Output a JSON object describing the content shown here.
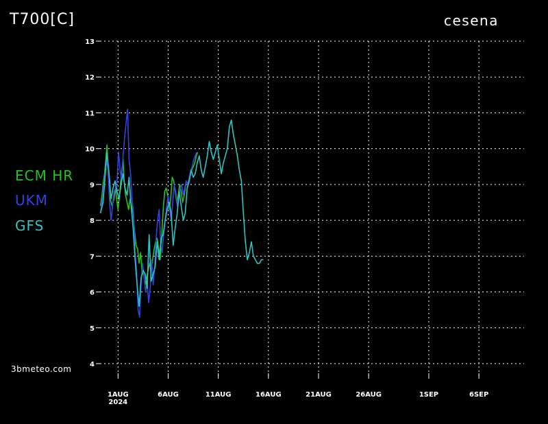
{
  "header": {
    "title": "T700[C]",
    "location": "cesena"
  },
  "credit": "3bmeteo.com",
  "legend": [
    {
      "name": "ECM HR",
      "color": "#22c322"
    },
    {
      "name": "UKM",
      "color": "#3344dd"
    },
    {
      "name": "GFS",
      "color": "#2fc4c4"
    }
  ],
  "chart_data": {
    "type": "line",
    "xlabel": "",
    "ylabel": "",
    "ylim": [
      4,
      13
    ],
    "xlim": [
      -1.8,
      40.5
    ],
    "grid": true,
    "yticks": [
      4,
      5,
      6,
      7,
      8,
      9,
      10,
      11,
      12,
      13
    ],
    "xticks": [
      {
        "x": 0,
        "label": "1AUG",
        "sublabel": "2024"
      },
      {
        "x": 5,
        "label": "6AUG"
      },
      {
        "x": 10,
        "label": "11AUG"
      },
      {
        "x": 15,
        "label": "16AUG"
      },
      {
        "x": 20,
        "label": "21AUG"
      },
      {
        "x": 25,
        "label": "26AUG"
      },
      {
        "x": 31,
        "label": "1SEP"
      },
      {
        "x": 36,
        "label": "6SEP"
      }
    ],
    "series": [
      {
        "name": "ECM HR",
        "color": "#22c322",
        "x": [
          -1.75,
          -1.6,
          -1.5,
          -1.35,
          -1.25,
          -1.1,
          -0.95,
          -0.8,
          -0.6,
          -0.4,
          -0.25,
          -0.1,
          0,
          0.15,
          0.3,
          0.5,
          0.6,
          0.75,
          0.9,
          1.05,
          1.2,
          1.35,
          1.5,
          1.65,
          1.8,
          1.95,
          2.1,
          2.25,
          2.4,
          2.55,
          2.7,
          2.85,
          3.0,
          3.15,
          3.3,
          3.45,
          3.6,
          3.75,
          3.9,
          4.05,
          4.2,
          4.35,
          4.5,
          4.65,
          4.8,
          4.95,
          5.1,
          5.25,
          5.4,
          5.55,
          5.7,
          5.85,
          6.0,
          6.15,
          6.3,
          6.45,
          6.6,
          6.75,
          6.9,
          7.05,
          7.2,
          7.35,
          7.5,
          7.65,
          7.8,
          7.95
        ],
        "y": [
          8.4,
          8.7,
          9.0,
          9.3,
          9.6,
          10.1,
          9.2,
          8.6,
          8.4,
          8.6,
          8.9,
          8.5,
          8.3,
          8.7,
          9.2,
          9.7,
          9.1,
          8.7,
          8.5,
          8.3,
          8.6,
          8.4,
          8.2,
          7.7,
          7.3,
          7.2,
          6.8,
          7.1,
          6.5,
          6.5,
          6.2,
          6.4,
          6.6,
          6.8,
          6.6,
          6.9,
          7.2,
          7.4,
          7.5,
          7.2,
          6.9,
          7.5,
          8.3,
          8.8,
          8.9,
          8.7,
          8.3,
          8.6,
          9.2,
          9.1,
          8.8,
          8.5,
          8.7,
          9.0,
          8.8,
          8.5,
          8.7,
          9.0,
          9.0,
          9.1,
          9.3,
          9.4,
          9.5,
          9.6,
          9.8,
          9.9
        ]
      },
      {
        "name": "UKM",
        "color": "#3344dd",
        "x": [
          -1.75,
          -1.6,
          -1.45,
          -1.3,
          -1.15,
          -1.0,
          -0.85,
          -0.7,
          -0.55,
          -0.4,
          -0.25,
          -0.1,
          0.05,
          0.2,
          0.35,
          0.5,
          0.65,
          0.8,
          0.95,
          1.1,
          1.25,
          1.4,
          1.55,
          1.7,
          1.85,
          2.0,
          2.15,
          2.3,
          2.45,
          2.6,
          2.75,
          2.9,
          3.05,
          3.2,
          3.35,
          3.5,
          3.65,
          3.8,
          3.95,
          4.1,
          4.25,
          4.4,
          4.55,
          4.7,
          4.85,
          5.0,
          5.15,
          5.3,
          5.45,
          5.6,
          5.75,
          5.9,
          6.05,
          6.2,
          6.35,
          6.5,
          6.65,
          6.8,
          6.95,
          7.1,
          7.25,
          7.4,
          7.55,
          7.7,
          7.85
        ],
        "y": [
          8.2,
          8.5,
          8.9,
          9.3,
          9.7,
          9.4,
          8.5,
          8.0,
          8.4,
          8.8,
          8.9,
          9.1,
          9.9,
          9.4,
          9.1,
          9.8,
          10.3,
          10.7,
          11.1,
          9.7,
          9.3,
          8.6,
          8.2,
          7.1,
          6.6,
          5.5,
          5.3,
          6.2,
          6.8,
          6.4,
          6.0,
          6.3,
          5.7,
          6.1,
          6.9,
          6.2,
          6.7,
          7.5,
          8.0,
          8.3,
          7.4,
          7.1,
          7.6,
          8.0,
          8.4,
          8.7,
          8.3,
          8.0,
          8.5,
          9.0,
          8.8,
          8.4,
          8.6,
          8.9,
          9.0,
          8.7,
          8.9,
          9.1,
          9.0,
          9.2,
          9.4,
          9.5,
          9.7,
          9.8,
          9.9
        ]
      },
      {
        "name": "GFS",
        "color": "#2fc4c4",
        "x": [
          -1.75,
          -1.5,
          -1.3,
          -1.1,
          -0.9,
          -0.7,
          -0.5,
          -0.3,
          -0.1,
          0.1,
          0.3,
          0.5,
          0.7,
          0.9,
          1.1,
          1.3,
          1.5,
          1.7,
          1.9,
          2.1,
          2.3,
          2.5,
          2.7,
          2.9,
          3.1,
          3.3,
          3.5,
          3.7,
          3.9,
          4.1,
          4.3,
          4.5,
          4.7,
          4.9,
          5.1,
          5.3,
          5.5,
          5.7,
          5.9,
          6.1,
          6.3,
          6.5,
          6.7,
          6.9,
          7.1,
          7.3,
          7.5,
          7.7,
          7.9,
          8.1,
          8.3,
          8.5,
          8.7,
          8.9,
          9.1,
          9.3,
          9.5,
          9.7,
          9.9,
          10.1,
          10.3,
          10.5,
          10.7,
          10.9,
          11.1,
          11.3,
          11.5,
          11.7,
          11.9,
          12.1,
          12.3,
          12.5,
          12.7,
          12.9,
          13.1,
          13.3,
          13.5,
          13.7,
          13.9,
          14.1,
          14.3,
          14.5
        ],
        "y": [
          8.2,
          8.5,
          9.2,
          9.9,
          9.3,
          8.6,
          8.9,
          9.1,
          8.8,
          8.6,
          9.0,
          9.3,
          8.9,
          8.7,
          9.2,
          8.4,
          7.8,
          6.9,
          6.2,
          5.6,
          6.4,
          6.6,
          6.5,
          6.1,
          7.6,
          6.3,
          6.5,
          6.7,
          7.4,
          6.9,
          7.5,
          7.6,
          8.0,
          8.3,
          8.5,
          8.2,
          7.3,
          7.8,
          8.2,
          8.8,
          8.4,
          8.0,
          8.2,
          8.9,
          9.1,
          9.4,
          9.2,
          9.3,
          9.6,
          9.8,
          9.4,
          9.2,
          9.5,
          9.8,
          10.2,
          9.9,
          9.7,
          9.9,
          10.1,
          9.7,
          9.3,
          9.6,
          9.8,
          10.0,
          10.6,
          10.8,
          10.4,
          10.1,
          9.8,
          9.4,
          9.1,
          8.2,
          7.4,
          6.9,
          7.1,
          7.4,
          7.0,
          6.9,
          6.8,
          6.8,
          6.9,
          6.9
        ]
      }
    ]
  }
}
